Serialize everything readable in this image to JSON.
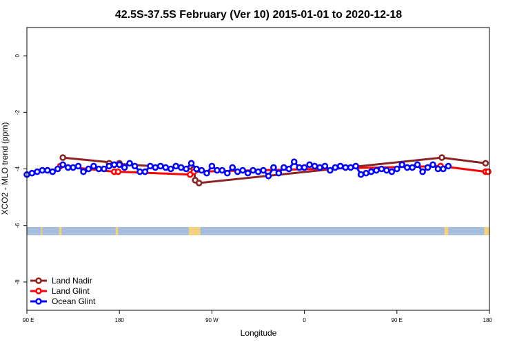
{
  "chart_data": {
    "type": "line",
    "title": "42.5S-37.5S February (Ver 10)   2015-01-01 to 2020-12-18",
    "xlabel": "Longitude",
    "ylabel": "XCO2 - MLO trend (ppm)",
    "xlim": [
      -90,
      270
    ],
    "ylim": [
      -9,
      1
    ],
    "x_ticks": [
      {
        "value": -90,
        "label": "90 E"
      },
      {
        "value": -18,
        "label": "180"
      },
      {
        "value": 54,
        "label": "90 W"
      },
      {
        "value": 126,
        "label": "0"
      },
      {
        "value": 198,
        "label": "90 E"
      },
      {
        "value": 270,
        "label": "180"
      }
    ],
    "y_ticks": [
      {
        "value": 0,
        "label": "0"
      },
      {
        "value": -2,
        "label": "-2"
      },
      {
        "value": -4,
        "label": "-4"
      },
      {
        "value": -6,
        "label": "-6"
      },
      {
        "value": -8,
        "label": "-8"
      }
    ],
    "band_y": -6.2,
    "land_segments": [
      [
        -79,
        -78
      ],
      [
        -65,
        -63
      ],
      [
        -21,
        -19
      ],
      [
        36,
        45
      ],
      [
        235,
        238
      ],
      [
        266,
        270
      ]
    ],
    "colors": {
      "land_nadir": "#8b2323",
      "land_glint": "#ff0000",
      "ocean_glint": "#0000ff",
      "ocean_band": "#a6bddb",
      "land_band": "#f2d27e"
    },
    "series": [
      {
        "name": "Land Nadir",
        "key": "land_nadir",
        "points": [
          [
            -62,
            -3.6
          ],
          [
            -18,
            -3.8
          ],
          [
            -26,
            -3.8
          ],
          [
            40,
            -4.0
          ],
          [
            41,
            -4.4
          ],
          [
            44,
            -4.5
          ],
          [
            233,
            -3.6
          ],
          [
            267,
            -3.8
          ]
        ]
      },
      {
        "name": "Land Glint",
        "key": "land_glint",
        "points": [
          [
            -64,
            -3.9
          ],
          [
            -22,
            -4.1
          ],
          [
            -19,
            -4.1
          ],
          [
            37,
            -4.2
          ],
          [
            40,
            -4.1
          ],
          [
            232,
            -3.9
          ],
          [
            267,
            -4.1
          ],
          [
            269,
            -4.1
          ]
        ]
      },
      {
        "name": "Ocean Glint",
        "key": "ocean_glint",
        "points": [
          [
            -90,
            -4.2
          ],
          [
            -86,
            -4.15
          ],
          [
            -82,
            -4.1
          ],
          [
            -78,
            -4.05
          ],
          [
            -74,
            -4.05
          ],
          [
            -70,
            -4.1
          ],
          [
            -66,
            -4.0
          ],
          [
            -62,
            -3.85
          ],
          [
            -58,
            -3.95
          ],
          [
            -54,
            -3.95
          ],
          [
            -50,
            -3.9
          ],
          [
            -46,
            -4.1
          ],
          [
            -42,
            -4.0
          ],
          [
            -38,
            -3.9
          ],
          [
            -34,
            -4.0
          ],
          [
            -30,
            -4.0
          ],
          [
            -26,
            -3.9
          ],
          [
            -22,
            -3.85
          ],
          [
            -18,
            -3.85
          ],
          [
            -14,
            -3.95
          ],
          [
            -10,
            -3.8
          ],
          [
            -6,
            -3.9
          ],
          [
            -2,
            -4.1
          ],
          [
            2,
            -4.1
          ],
          [
            6,
            -3.9
          ],
          [
            10,
            -3.95
          ],
          [
            14,
            -3.9
          ],
          [
            18,
            -3.95
          ],
          [
            22,
            -4.0
          ],
          [
            26,
            -3.9
          ],
          [
            30,
            -3.95
          ],
          [
            34,
            -4.0
          ],
          [
            38,
            -3.8
          ],
          [
            42,
            -4.0
          ],
          [
            46,
            -4.05
          ],
          [
            50,
            -4.15
          ],
          [
            54,
            -3.9
          ],
          [
            58,
            -4.05
          ],
          [
            62,
            -4.05
          ],
          [
            66,
            -4.15
          ],
          [
            70,
            -3.95
          ],
          [
            74,
            -4.1
          ],
          [
            78,
            -4.05
          ],
          [
            82,
            -4.15
          ],
          [
            86,
            -4.05
          ],
          [
            90,
            -4.1
          ],
          [
            94,
            -4.05
          ],
          [
            98,
            -4.25
          ],
          [
            102,
            -3.95
          ],
          [
            106,
            -4.15
          ],
          [
            110,
            -3.95
          ],
          [
            114,
            -4.0
          ],
          [
            118,
            -3.75
          ],
          [
            122,
            -3.95
          ],
          [
            126,
            -3.95
          ],
          [
            130,
            -3.85
          ],
          [
            134,
            -3.9
          ],
          [
            138,
            -3.95
          ],
          [
            142,
            -3.9
          ],
          [
            146,
            -4.05
          ],
          [
            150,
            -3.95
          ],
          [
            154,
            -3.9
          ],
          [
            158,
            -3.95
          ],
          [
            162,
            -3.95
          ],
          [
            166,
            -3.9
          ],
          [
            170,
            -4.2
          ],
          [
            174,
            -4.15
          ],
          [
            178,
            -4.1
          ],
          [
            182,
            -4.05
          ],
          [
            186,
            -4.0
          ],
          [
            190,
            -4.05
          ],
          [
            194,
            -4.1
          ],
          [
            198,
            -4.0
          ],
          [
            202,
            -3.85
          ],
          [
            206,
            -3.95
          ],
          [
            210,
            -3.95
          ],
          [
            214,
            -3.85
          ],
          [
            218,
            -4.1
          ],
          [
            222,
            -3.95
          ],
          [
            226,
            -3.85
          ],
          [
            230,
            -4.0
          ],
          [
            234,
            -4.0
          ],
          [
            238,
            -3.9
          ]
        ]
      }
    ],
    "legend": {
      "position": "bottom-left",
      "entries": [
        "Land Nadir",
        "Land Glint",
        "Ocean Glint"
      ]
    }
  }
}
